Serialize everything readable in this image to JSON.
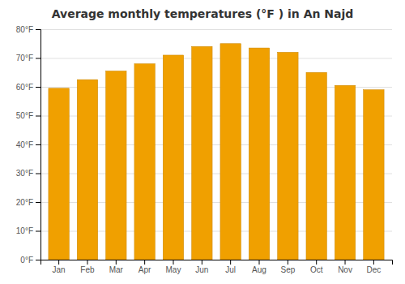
{
  "chart_data": {
    "type": "bar",
    "title": "Average monthly temperatures (°F ) in An Najd",
    "categories": [
      "Jan",
      "Feb",
      "Mar",
      "Apr",
      "May",
      "Jun",
      "Jul",
      "Aug",
      "Sep",
      "Oct",
      "Nov",
      "Dec"
    ],
    "values": [
      59.5,
      62.5,
      65.5,
      68.0,
      71.0,
      74.0,
      75.0,
      73.5,
      72.0,
      65.0,
      60.5,
      59.0
    ],
    "color": "#F0A000",
    "ylim": [
      0,
      80
    ],
    "yticks": [
      {
        "value": 0,
        "label": "0°F"
      },
      {
        "value": 10,
        "label": "10°F"
      },
      {
        "value": 20,
        "label": "20°F"
      },
      {
        "value": 30,
        "label": "30°F"
      },
      {
        "value": 40,
        "label": "40°F"
      },
      {
        "value": 50,
        "label": "50°F"
      },
      {
        "value": 60,
        "label": "60°F"
      },
      {
        "value": 70,
        "label": "70°F"
      },
      {
        "value": 80,
        "label": "80°F"
      }
    ],
    "grid": true
  }
}
